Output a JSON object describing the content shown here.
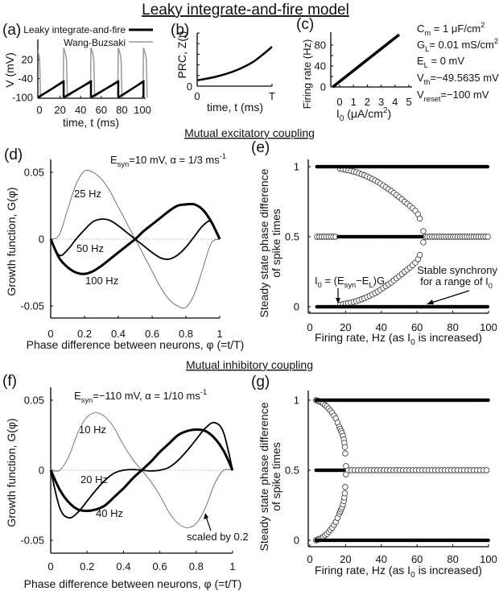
{
  "title": "Leaky integrate-and-fire model",
  "sections": {
    "excitatory": "Mutual excitatory coupling",
    "inhibitory": "Mutual inhibitory coupling"
  },
  "parameters": [
    "C_{m} = 1 μF/cm^{2}",
    "G_{L}= 0.01 mS/cm^{2}",
    "E_{L} = 0 mV",
    "V_{th}=−49.5635 mV",
    "V_{reset}=−100 mV"
  ],
  "chart_data": [
    {
      "panel": "(a)",
      "type": "line",
      "xlabel": "time, t (ms)",
      "ylabel": "V (mV)",
      "x_ticks": [
        0,
        20,
        40,
        60,
        80,
        100
      ],
      "y_ticks": [
        20,
        -40,
        -100
      ],
      "xlim": [
        -1.5,
        104
      ],
      "ylim": [
        -100,
        84
      ],
      "legend": "top-right",
      "series": [
        {
          "name": "Leaky integrate-and-fire",
          "color": "#000000",
          "spike_times": [
            23.5,
            50,
            76.5,
            101
          ],
          "v_reset": -100,
          "v_threshold": -49.56
        },
        {
          "name": "Wang-Buzsaki",
          "color": "#999999",
          "spike_times": [
            -2.6,
            23.5,
            50,
            76.5,
            101
          ],
          "spike_peak": 58,
          "trough": -100
        }
      ]
    },
    {
      "panel": "(b)",
      "type": "line",
      "xlabel": "time, t (ms)",
      "ylabel": "PRC, Z(t)",
      "x_ticks": [
        0,
        1
      ],
      "x_tick_labels": [
        "0",
        "T"
      ],
      "y_ticks": [
        0
      ],
      "y_minor_ticks": 5,
      "series": [
        {
          "x": [
            0,
            0.25,
            0.5,
            0.75,
            1
          ],
          "y": [
            0.55,
            0.89,
            1.43,
            2.3,
            3.7
          ]
        }
      ]
    },
    {
      "panel": "(c)",
      "type": "line",
      "xlabel": "I_{0} (μA/cm^{2})",
      "ylabel": "Firing rate (Hz)",
      "x_ticks": [
        0,
        1,
        2,
        3,
        4,
        5
      ],
      "y_ticks": [
        0,
        40,
        80
      ],
      "xlim": [
        -0.65,
        5
      ],
      "ylim": [
        0,
        105
      ],
      "series": [
        {
          "x": [
            -0.5,
            4.3
          ],
          "y": [
            0,
            100
          ]
        }
      ]
    },
    {
      "panel": "(d)",
      "type": "line",
      "annotation": "E_{syn}=10 mV, α = 1/3 ms^{-1}",
      "xlabel": "Phase difference between neurons, φ (=t/T)",
      "ylabel": "Growth function, G(φ)",
      "x_ticks": [
        0,
        0.2,
        0.4,
        0.6,
        0.8,
        1
      ],
      "y_ticks": [
        0.05,
        0,
        -0.05
      ],
      "xlim": [
        0,
        1
      ],
      "ylim": [
        -0.06,
        0.06
      ],
      "zero_line": "dotted",
      "phi": [
        0,
        0.05,
        0.1,
        0.15,
        0.2,
        0.25,
        0.3,
        0.35,
        0.4,
        0.45,
        0.5,
        0.55,
        0.6,
        0.65,
        0.7,
        0.75,
        0.8,
        0.85,
        0.9,
        0.95,
        1
      ],
      "series": [
        {
          "name": "25 Hz",
          "weight": "thin",
          "values": [
            0,
            0.003,
            0.022,
            0.041,
            0.051,
            0.05,
            0.045,
            0.036,
            0.024,
            0.012,
            0,
            -0.012,
            -0.024,
            -0.036,
            -0.045,
            -0.05,
            -0.051,
            -0.041,
            -0.022,
            -0.003,
            0
          ]
        },
        {
          "name": "50 Hz",
          "weight": "medium",
          "values": [
            0,
            -0.012,
            -0.008,
            0.0,
            0.007,
            0.013,
            0.015,
            0.014,
            0.01,
            0.005,
            0,
            -0.005,
            -0.01,
            -0.014,
            -0.015,
            -0.012,
            -0.006,
            0.002,
            0.01,
            0.013,
            0
          ]
        },
        {
          "name": "100 Hz",
          "weight": "thick",
          "values": [
            0,
            -0.014,
            -0.021,
            -0.025,
            -0.026,
            -0.024,
            -0.02,
            -0.015,
            -0.01,
            -0.005,
            0,
            0.006,
            0.011,
            0.016,
            0.021,
            0.025,
            0.026,
            0.026,
            0.022,
            0.013,
            0
          ]
        }
      ]
    },
    {
      "panel": "(e)",
      "type": "scatter",
      "xlabel": "Firing rate, Hz (as I_{0} is increased)",
      "ylabel": [
        "Steady state phase difference",
        "of spike times"
      ],
      "x_ticks": [
        0,
        20,
        40,
        60,
        80,
        100
      ],
      "y_ticks": [
        1,
        0.5,
        0
      ],
      "xlim": [
        0,
        100
      ],
      "ylim": [
        0,
        1
      ],
      "stable": [
        {
          "y": 1,
          "x_from": 4,
          "x_to": 100
        },
        {
          "y": 0,
          "x_from": 4,
          "x_to": 100
        },
        {
          "y": 0.5,
          "x_from": 16,
          "x_to": 63
        }
      ],
      "unstable_lines": [
        {
          "y": 0.5,
          "x_from": 4,
          "x_to": 15,
          "step": 1.3
        },
        {
          "y": 0.5,
          "x_from": 64.5,
          "x_to": 100,
          "step": 1.3
        }
      ],
      "unstable_branches": [
        [
          [
            17,
            0.985
          ],
          [
            18.5,
            0.982
          ],
          [
            20,
            0.978
          ],
          [
            21.5,
            0.974
          ],
          [
            23,
            0.97
          ],
          [
            24.5,
            0.965
          ],
          [
            26,
            0.96
          ],
          [
            27.5,
            0.953
          ],
          [
            29,
            0.946
          ],
          [
            30.5,
            0.939
          ],
          [
            32,
            0.93
          ],
          [
            33.5,
            0.922
          ],
          [
            35,
            0.912
          ],
          [
            36.5,
            0.902
          ],
          [
            38,
            0.891
          ],
          [
            39.5,
            0.879
          ],
          [
            41,
            0.866
          ],
          [
            42.5,
            0.853
          ],
          [
            44,
            0.84
          ],
          [
            45.5,
            0.827
          ],
          [
            47,
            0.812
          ],
          [
            48.5,
            0.797
          ],
          [
            50,
            0.782
          ],
          [
            51.5,
            0.767
          ],
          [
            53,
            0.75
          ],
          [
            54.5,
            0.735
          ],
          [
            56,
            0.72
          ],
          [
            57.5,
            0.703
          ],
          [
            59,
            0.685
          ],
          [
            60.5,
            0.66
          ],
          [
            61.5,
            0.63
          ],
          [
            63.5,
            0.54
          ]
        ],
        [
          [
            17,
            0.015
          ],
          [
            18.5,
            0.018
          ],
          [
            20,
            0.022
          ],
          [
            21.5,
            0.026
          ],
          [
            23,
            0.03
          ],
          [
            24.5,
            0.035
          ],
          [
            26,
            0.04
          ],
          [
            27.5,
            0.047
          ],
          [
            29,
            0.054
          ],
          [
            30.5,
            0.061
          ],
          [
            32,
            0.07
          ],
          [
            33.5,
            0.078
          ],
          [
            35,
            0.088
          ],
          [
            36.5,
            0.098
          ],
          [
            38,
            0.109
          ],
          [
            39.5,
            0.121
          ],
          [
            41,
            0.134
          ],
          [
            42.5,
            0.147
          ],
          [
            44,
            0.16
          ],
          [
            45.5,
            0.173
          ],
          [
            47,
            0.188
          ],
          [
            48.5,
            0.203
          ],
          [
            50,
            0.218
          ],
          [
            51.5,
            0.233
          ],
          [
            53,
            0.25
          ],
          [
            54.5,
            0.265
          ],
          [
            56,
            0.28
          ],
          [
            57.5,
            0.297
          ],
          [
            59,
            0.315
          ],
          [
            60.5,
            0.34
          ],
          [
            61.5,
            0.37
          ],
          [
            63.5,
            0.46
          ]
        ]
      ],
      "annotations": [
        "I_{0} = (E_{syn}−E_{L})G_{L}",
        "Stable synchrony",
        "for a range of I_{0}"
      ]
    },
    {
      "panel": "(f)",
      "type": "line",
      "annotation": "E_{syn}=−110 mV, α = 1/10 ms^{-1}",
      "note": "scaled by 0.2",
      "xlabel": "Phase difference between neurons, φ (=t/T)",
      "ylabel": "Growth function, G(φ)",
      "x_ticks": [
        0,
        0.2,
        0.4,
        0.6,
        0.8,
        1
      ],
      "y_ticks": [
        0.05,
        0,
        -0.05
      ],
      "xlim": [
        0,
        1
      ],
      "ylim": [
        -0.06,
        0.06
      ],
      "zero_line": "dotted",
      "phi": [
        0,
        0.05,
        0.1,
        0.15,
        0.2,
        0.25,
        0.3,
        0.35,
        0.4,
        0.45,
        0.5,
        0.55,
        0.6,
        0.65,
        0.7,
        0.75,
        0.8,
        0.85,
        0.9,
        0.95,
        1
      ],
      "series": [
        {
          "name": "10 Hz",
          "weight": "thin",
          "values": [
            0,
            0.0,
            0.01,
            0.027,
            0.038,
            0.041,
            0.038,
            0.03,
            0.018,
            0.008,
            0,
            -0.008,
            -0.018,
            -0.03,
            -0.038,
            -0.041,
            -0.038,
            -0.027,
            -0.01,
            0.0,
            0
          ]
        },
        {
          "name": "20 Hz",
          "weight": "medium",
          "values": [
            0,
            -0.027,
            -0.034,
            -0.03,
            -0.022,
            -0.014,
            -0.007,
            -0.002,
            0,
            0.0005,
            0,
            -0.0005,
            0,
            0.002,
            0.007,
            0.014,
            0.022,
            0.03,
            0.034,
            0.027,
            0
          ]
        },
        {
          "name": "40 Hz",
          "weight": "thick",
          "values": [
            0,
            -0.014,
            -0.023,
            -0.028,
            -0.029,
            -0.028,
            -0.025,
            -0.019,
            -0.013,
            -0.006,
            0,
            0.006,
            0.013,
            0.019,
            0.025,
            0.028,
            0.029,
            0.028,
            0.023,
            0.014,
            0
          ]
        }
      ]
    },
    {
      "panel": "(g)",
      "type": "scatter",
      "xlabel": "Firing rate, Hz (as I_{0} is increased)",
      "ylabel": [
        "Steady state phase difference",
        "of spike times"
      ],
      "x_ticks": [
        0,
        20,
        40,
        60,
        80,
        100
      ],
      "y_ticks": [
        1,
        0.5,
        0
      ],
      "xlim": [
        0,
        100
      ],
      "ylim": [
        0,
        1
      ],
      "stable": [
        {
          "y": 1,
          "x_from": 3.5,
          "x_to": 100
        },
        {
          "y": 0,
          "x_from": 3.5,
          "x_to": 100
        },
        {
          "y": 0.5,
          "x_from": 3.5,
          "x_to": 19.5
        }
      ],
      "unstable_lines": [
        {
          "y": 0.5,
          "x_from": 21.5,
          "x_to": 100,
          "step": 1.8
        }
      ],
      "unstable_branches": [
        [
          [
            3.5,
            1.0
          ],
          [
            4.5,
            0.995
          ],
          [
            5.5,
            0.99
          ],
          [
            6.5,
            0.985
          ],
          [
            7.5,
            0.975
          ],
          [
            8.5,
            0.965
          ],
          [
            9.5,
            0.955
          ],
          [
            10.5,
            0.94
          ],
          [
            11.5,
            0.925
          ],
          [
            12.5,
            0.91
          ],
          [
            13.5,
            0.89
          ],
          [
            14.5,
            0.87
          ],
          [
            15.5,
            0.84
          ],
          [
            16.5,
            0.81
          ],
          [
            17,
            0.795
          ],
          [
            17.5,
            0.78
          ],
          [
            18,
            0.765
          ],
          [
            18.5,
            0.745
          ],
          [
            19,
            0.72
          ],
          [
            19.3,
            0.695
          ],
          [
            19.6,
            0.665
          ],
          [
            19.8,
            0.62
          ],
          [
            20.2,
            0.53
          ]
        ],
        [
          [
            3.5,
            0.0
          ],
          [
            4.5,
            0.005
          ],
          [
            5.5,
            0.01
          ],
          [
            6.5,
            0.015
          ],
          [
            7.5,
            0.025
          ],
          [
            8.5,
            0.035
          ],
          [
            9.5,
            0.045
          ],
          [
            10.5,
            0.06
          ],
          [
            11.5,
            0.075
          ],
          [
            12.5,
            0.09
          ],
          [
            13.5,
            0.11
          ],
          [
            14.5,
            0.13
          ],
          [
            15.5,
            0.16
          ],
          [
            16.5,
            0.19
          ],
          [
            17,
            0.205
          ],
          [
            17.5,
            0.22
          ],
          [
            18,
            0.235
          ],
          [
            18.5,
            0.255
          ],
          [
            19,
            0.28
          ],
          [
            19.3,
            0.305
          ],
          [
            19.6,
            0.335
          ],
          [
            19.8,
            0.38
          ],
          [
            20.2,
            0.47
          ]
        ]
      ]
    }
  ]
}
